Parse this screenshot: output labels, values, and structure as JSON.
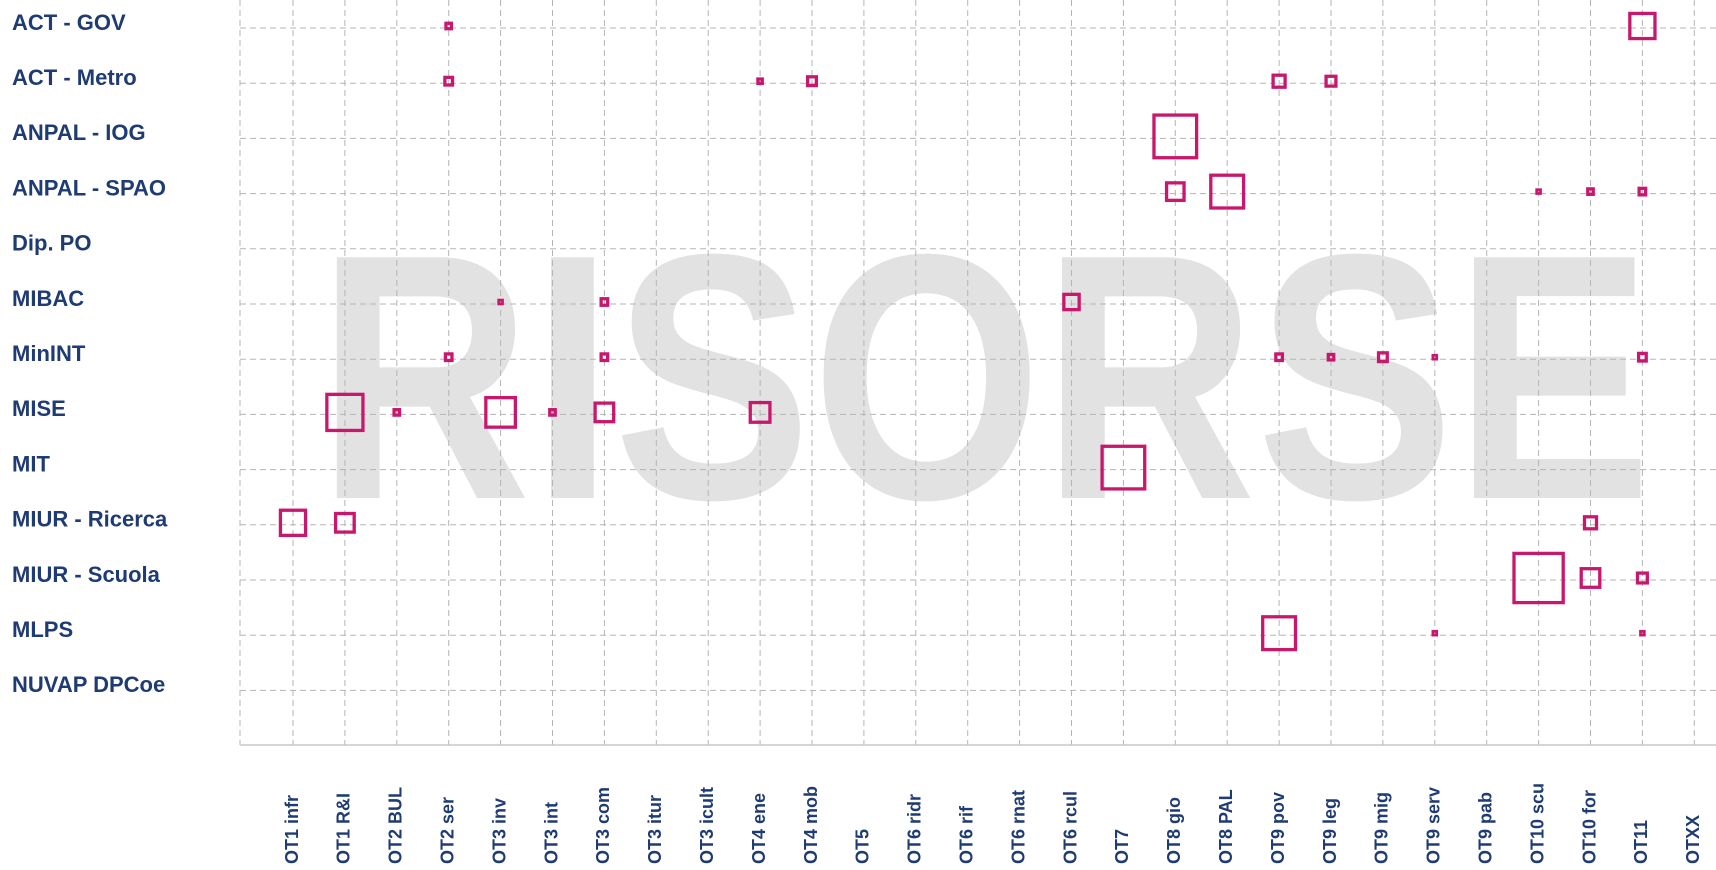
{
  "chart_data": {
    "type": "matrix",
    "watermark": "RISORSE",
    "color": "#c8186e",
    "grid": true,
    "rows": [
      "ACT - GOV",
      "ACT - Metro",
      "ANPAL - IOG",
      "ANPAL - SPAO",
      "Dip. PO",
      "MIBAC",
      "MinINT",
      "MISE",
      "MIT",
      "MIUR - Ricerca",
      "MIUR - Scuola",
      "MLPS",
      "NUVAP DPCoe"
    ],
    "columns": [
      "OT1 infr",
      "OT1 R&I",
      "OT2 BUL",
      "OT2 ser",
      "OT3 inv",
      "OT3 int",
      "OT3 com",
      "OT3 itur",
      "OT3 icult",
      "OT4 ene",
      "OT4 mob",
      "OT5",
      "OT6 ridr",
      "OT6 rif",
      "OT6 rnat",
      "OT6 rcul",
      "OT7",
      "OT8 gio",
      "OT8 PAL",
      "OT9 pov",
      "OT9 leg",
      "OT9 mig",
      "OT9 serv",
      "OT9 pab",
      "OT10 scu",
      "OT10 for",
      "OT11",
      "OTXX"
    ],
    "points": [
      {
        "row": "ACT - GOV",
        "column": "OT2 ser",
        "size": 8
      },
      {
        "row": "ACT - GOV",
        "column": "OT11",
        "size": 26
      },
      {
        "row": "ACT - Metro",
        "column": "OT2 ser",
        "size": 10
      },
      {
        "row": "ACT - Metro",
        "column": "OT4 ene",
        "size": 7
      },
      {
        "row": "ACT - Metro",
        "column": "OT4 mob",
        "size": 11
      },
      {
        "row": "ACT - Metro",
        "column": "OT9 pov",
        "size": 14
      },
      {
        "row": "ACT - Metro",
        "column": "OT9 leg",
        "size": 12
      },
      {
        "row": "ANPAL - IOG",
        "column": "OT8 gio",
        "size": 42
      },
      {
        "row": "ANPAL - SPAO",
        "column": "OT8 gio",
        "size": 19
      },
      {
        "row": "ANPAL - SPAO",
        "column": "OT8 PAL",
        "size": 33
      },
      {
        "row": "ANPAL - SPAO",
        "column": "OT10 scu",
        "size": 6
      },
      {
        "row": "ANPAL - SPAO",
        "column": "OT10 for",
        "size": 8
      },
      {
        "row": "ANPAL - SPAO",
        "column": "OT11",
        "size": 9
      },
      {
        "row": "MIBAC",
        "column": "OT3 inv",
        "size": 6
      },
      {
        "row": "MIBAC",
        "column": "OT3 com",
        "size": 9
      },
      {
        "row": "MIBAC",
        "column": "OT6 rcul",
        "size": 17
      },
      {
        "row": "MinINT",
        "column": "OT2 ser",
        "size": 9
      },
      {
        "row": "MinINT",
        "column": "OT3 com",
        "size": 9
      },
      {
        "row": "MinINT",
        "column": "OT9 pov",
        "size": 9
      },
      {
        "row": "MinINT",
        "column": "OT9 leg",
        "size": 8
      },
      {
        "row": "MinINT",
        "column": "OT9 mig",
        "size": 11
      },
      {
        "row": "MinINT",
        "column": "OT9 serv",
        "size": 6
      },
      {
        "row": "MinINT",
        "column": "OT11",
        "size": 10
      },
      {
        "row": "MISE",
        "column": "OT1 R&I",
        "size": 36
      },
      {
        "row": "MISE",
        "column": "OT2 BUL",
        "size": 8
      },
      {
        "row": "MISE",
        "column": "OT3 inv",
        "size": 30
      },
      {
        "row": "MISE",
        "column": "OT3 int",
        "size": 8
      },
      {
        "row": "MISE",
        "column": "OT3 com",
        "size": 20
      },
      {
        "row": "MISE",
        "column": "OT4 ene",
        "size": 21
      },
      {
        "row": "MIT",
        "column": "OT7",
        "size": 42
      },
      {
        "row": "MIUR - Ricerca",
        "column": "OT1 infr",
        "size": 26
      },
      {
        "row": "MIUR - Ricerca",
        "column": "OT1 R&I",
        "size": 20
      },
      {
        "row": "MIUR - Ricerca",
        "column": "OT10 for",
        "size": 14
      },
      {
        "row": "MIUR - Scuola",
        "column": "OT10 scu",
        "size": 48
      },
      {
        "row": "MIUR - Scuola",
        "column": "OT10 for",
        "size": 20
      },
      {
        "row": "MIUR - Scuola",
        "column": "OT11",
        "size": 12
      },
      {
        "row": "MLPS",
        "column": "OT9 pov",
        "size": 33
      },
      {
        "row": "MLPS",
        "column": "OT9 serv",
        "size": 6
      },
      {
        "row": "MLPS",
        "column": "OT11",
        "size": 6
      }
    ]
  }
}
